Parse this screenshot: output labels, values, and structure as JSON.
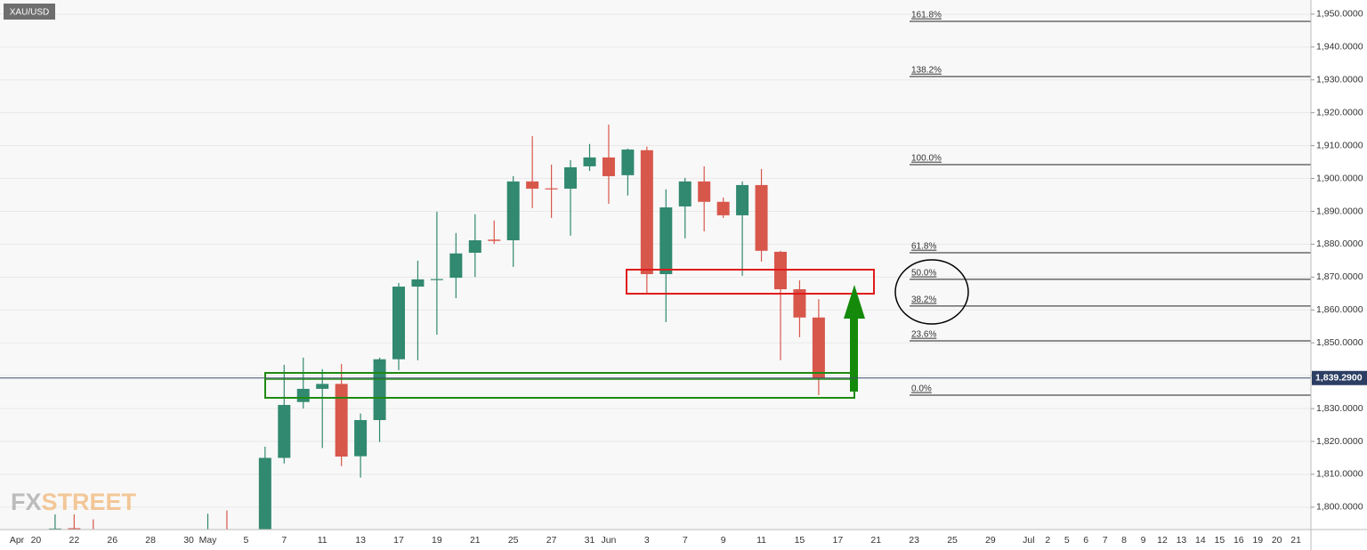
{
  "chart_data": {
    "type": "candlestick",
    "symbol": "XAU/USD",
    "watermark_parts": [
      "FX",
      "STREET"
    ],
    "up_color": "#31896f",
    "down_color": "#d8574b",
    "grid": true,
    "ylim": [
      1793.2,
      1954.3
    ],
    "yticks": [
      {
        "value": 1800,
        "label": "1,800.0000"
      },
      {
        "value": 1810,
        "label": "1,810.0000"
      },
      {
        "value": 1820,
        "label": "1,820.0000"
      },
      {
        "value": 1830,
        "label": "1,830.0000"
      },
      {
        "value": 1840,
        "label": "1,840.0000"
      },
      {
        "value": 1850,
        "label": "1,850.0000"
      },
      {
        "value": 1860,
        "label": "1,860.0000"
      },
      {
        "value": 1870,
        "label": "1,870.0000"
      },
      {
        "value": 1880,
        "label": "1,880.0000"
      },
      {
        "value": 1890,
        "label": "1,890.0000"
      },
      {
        "value": 1900,
        "label": "1,900.0000"
      },
      {
        "value": 1910,
        "label": "1,910.0000"
      },
      {
        "value": 1920,
        "label": "1,920.0000"
      },
      {
        "value": 1930,
        "label": "1,930.0000"
      },
      {
        "value": 1940,
        "label": "1,940.0000"
      },
      {
        "value": 1950,
        "label": "1,950.0000"
      }
    ],
    "current_price": {
      "value": 1839.29,
      "label": "1,839.2900"
    },
    "categories": [
      "Apr",
      "20",
      null,
      "22",
      null,
      "26",
      null,
      "28",
      null,
      "30",
      "May",
      null,
      "5",
      null,
      "7",
      null,
      "11",
      null,
      "13",
      null,
      "17",
      null,
      "19",
      null,
      "21",
      null,
      "25",
      null,
      "27",
      null,
      "31",
      "Jun",
      null,
      "3",
      null,
      "7",
      null,
      "9",
      null,
      "11",
      null,
      "15",
      null,
      "17",
      null,
      "21",
      null,
      "23",
      null,
      "25",
      null,
      "29",
      null,
      "Jul",
      "2",
      "5",
      "6",
      "7",
      "8",
      "9",
      "12",
      "13",
      "14",
      "15",
      "16",
      "19",
      "20",
      "21"
    ],
    "open": [
      null,
      null,
      1791,
      1793.6,
      1792,
      null,
      null,
      null,
      null,
      null,
      1785,
      1790,
      null,
      1787,
      1815,
      1832,
      1836,
      1837.5,
      1815.5,
      1826.5,
      1845,
      1867.1,
      1869.3,
      1869.8,
      1877.4,
      1881.4,
      1881.2,
      1899.1,
      1897,
      1896.9,
      1903.7,
      1906.4,
      1901,
      1908.6,
      1870.9,
      1891.5,
      1899.1,
      1892.9,
      1888.8,
      1898,
      1877.7,
      1866.3,
      1857.7,
      null,
      null,
      null,
      null,
      null,
      null,
      null,
      null,
      null,
      null,
      null,
      null,
      null,
      null,
      null,
      null,
      null,
      null,
      null,
      null,
      null,
      null,
      null,
      null,
      null
    ],
    "high": [
      null,
      null,
      1797.8,
      1797.8,
      1796.3,
      null,
      null,
      null,
      null,
      null,
      1798,
      1799,
      null,
      1818.4,
      1843.3,
      1845.5,
      1842,
      1843.6,
      1828.5,
      1845.5,
      1868.2,
      1875,
      1889.9,
      1883.4,
      1889.1,
      1887.2,
      1900.7,
      1912.9,
      1904.2,
      1905.6,
      1910.5,
      1916.4,
      1909.1,
      1909.7,
      1896.7,
      1900.2,
      1903.7,
      1894.2,
      1899.1,
      1902.9,
      1878,
      1869,
      1863.3,
      null,
      null,
      null,
      null,
      null,
      null,
      null,
      null,
      null,
      null,
      null,
      null,
      null,
      null,
      null,
      null,
      null,
      null,
      null,
      null,
      null,
      null,
      null,
      null,
      null
    ],
    "low": [
      null,
      null,
      1785,
      1786,
      1785,
      null,
      null,
      null,
      null,
      null,
      1782,
      1781,
      null,
      1782,
      1813.3,
      1830,
      1818,
      1812.5,
      1809,
      1819.8,
      1841.7,
      1844.7,
      1852.5,
      1863.6,
      1870,
      1880.1,
      1873.1,
      1891,
      1888,
      1882.6,
      1902.3,
      1892.3,
      1894.8,
      1865.2,
      1856.3,
      1881.8,
      1883.9,
      1888,
      1870.4,
      1874.7,
      1844.7,
      1851.7,
      1834.1,
      null,
      null,
      null,
      null,
      null,
      null,
      null,
      null,
      null,
      null,
      null,
      null,
      null,
      null,
      null,
      null,
      null,
      null,
      null,
      null,
      null,
      null,
      null,
      null,
      null
    ],
    "close": [
      null,
      null,
      1793.5,
      1792,
      1788,
      null,
      null,
      null,
      null,
      null,
      1790,
      1784,
      null,
      1815,
      1831.1,
      1836,
      1837.5,
      1815.4,
      1826.5,
      1845,
      1867.1,
      1869.3,
      1869.4,
      1877.2,
      1881.2,
      1881,
      1899.1,
      1896.9,
      1896.7,
      1903.4,
      1906.4,
      1900.7,
      1908.8,
      1870.9,
      1891.2,
      1899.1,
      1892.9,
      1888.8,
      1898,
      1878,
      1866.3,
      1857.7,
      1839.29,
      null,
      null,
      null,
      null,
      null,
      null,
      null,
      null,
      null,
      null,
      null,
      null,
      null,
      null,
      null,
      null,
      null,
      null,
      null,
      null,
      null,
      null,
      null,
      null,
      null
    ],
    "fib_levels": [
      {
        "label": "161.8%",
        "price": 1947.8
      },
      {
        "label": "138.2%",
        "price": 1931
      },
      {
        "label": "100.0%",
        "price": 1904.2
      },
      {
        "label": "61.8%",
        "price": 1877.4
      },
      {
        "label": "50.0%",
        "price": 1869.3
      },
      {
        "label": "38.2%",
        "price": 1861.2
      },
      {
        "label": "23.6%",
        "price": 1850.6
      },
      {
        "label": "0.0%",
        "price": 1834.1
      }
    ]
  }
}
